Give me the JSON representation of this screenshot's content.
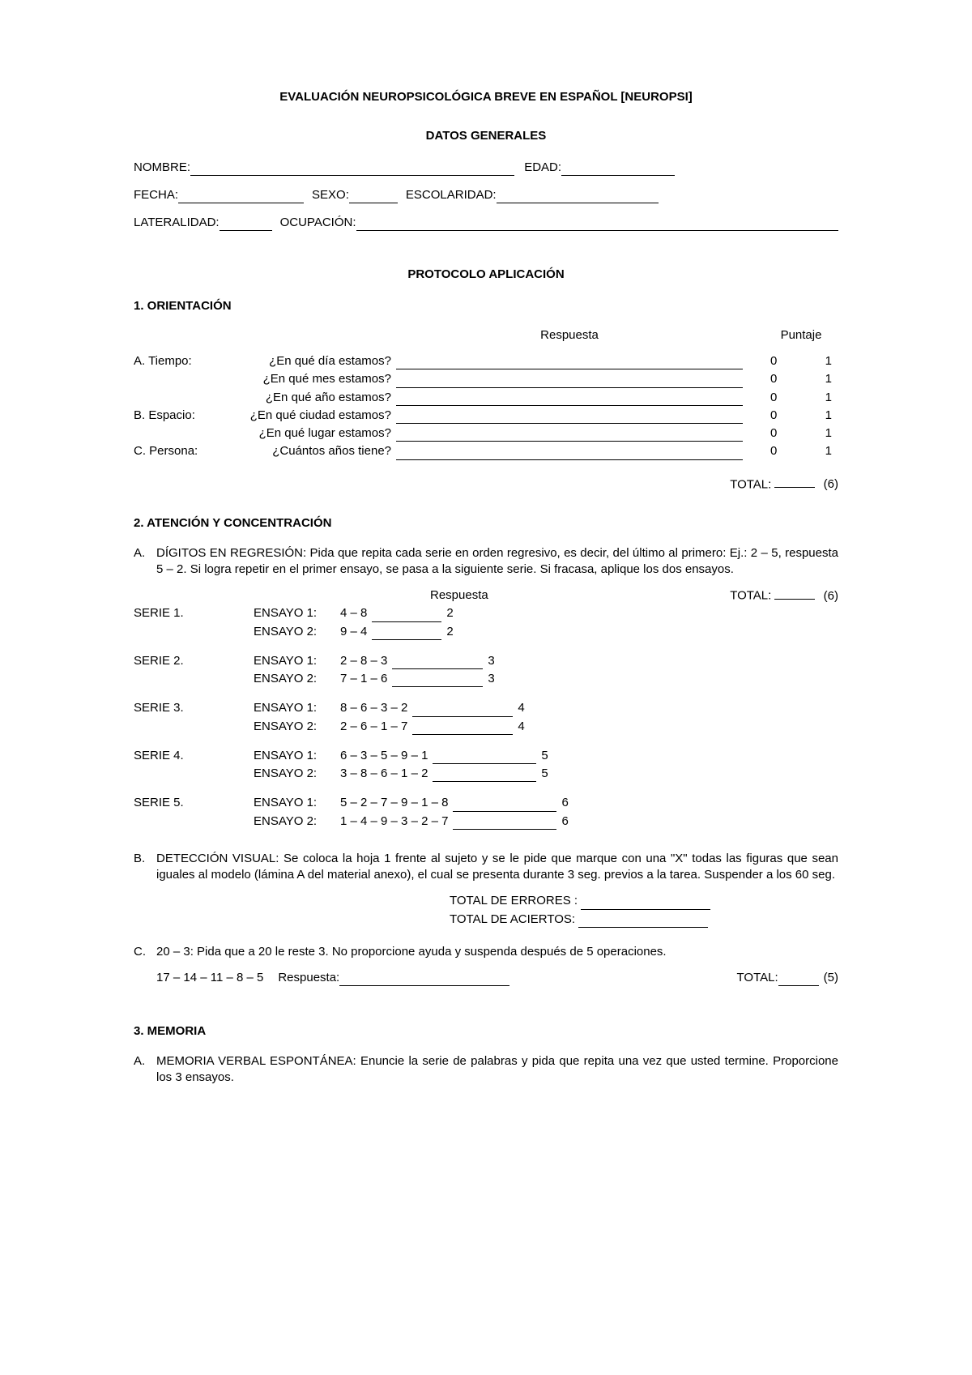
{
  "title": "EVALUACIÓN NEUROPSICOLÓGICA BREVE EN ESPAÑOL [NEUROPSI]",
  "subtitle": "DATOS GENERALES",
  "fields": {
    "nombre": "NOMBRE:",
    "edad": "EDAD:",
    "fecha": "FECHA:",
    "sexo": "SEXO:",
    "escolaridad": "ESCOLARIDAD:",
    "lateralidad": "LATERALIDAD:",
    "ocupacion": "OCUPACIÓN:"
  },
  "protocolo": "PROTOCOLO APLICACIÓN",
  "s1": {
    "heading": "1. ORIENTACIÓN",
    "col_respuesta": "Respuesta",
    "col_puntaje": "Puntaje",
    "rows": [
      {
        "cat": "A. Tiempo:",
        "q": "¿En qué día estamos?"
      },
      {
        "cat": "",
        "q": "¿En qué mes estamos?"
      },
      {
        "cat": "",
        "q": "¿En qué año estamos?"
      },
      {
        "cat": "B. Espacio:",
        "q": "¿En qué ciudad estamos?"
      },
      {
        "cat": "",
        "q": "¿En qué lugar estamos?"
      },
      {
        "cat": "C. Persona:",
        "q": "¿Cuántos años tiene?"
      }
    ],
    "score0": "0",
    "score1": "1",
    "total_label": "TOTAL:",
    "total_max": "(6)"
  },
  "s2": {
    "heading": "2. ATENCIÓN Y CONCENTRACIÓN",
    "a_letter": "A.",
    "a_text": "DÍGITOS EN REGRESIÓN: Pida que repita cada serie en orden regresivo, es decir, del último al primero: Ej.: 2 – 5, respuesta 5 – 2. Si logra repetir en el primer ensayo, se pasa a la siguiente serie. Si fracasa, aplique los dos ensayos.",
    "respuesta": "Respuesta",
    "ensayo1": "ENSAYO 1:",
    "ensayo2": "ENSAYO 2:",
    "series": [
      {
        "name": "SERIE 1.",
        "e1": "4 – 8",
        "e2": "9 – 4",
        "line_w": 86,
        "score": "2"
      },
      {
        "name": "SERIE 2.",
        "e1": "2 – 8 – 3",
        "e2": "7 – 1 – 6",
        "line_w": 112,
        "score": "3"
      },
      {
        "name": "SERIE 3.",
        "e1": "8 – 6 – 3 – 2",
        "e2": "2 – 6 – 1 – 7",
        "line_w": 124,
        "score": "4"
      },
      {
        "name": "SERIE 4.",
        "e1": "6 – 3 – 5 – 9 – 1",
        "e2": "3 – 8 – 6 – 1 – 2",
        "line_w": 128,
        "score": "5"
      },
      {
        "name": "SERIE 5.",
        "e1": "5 – 2 – 7 – 9 – 1 – 8",
        "e2": "1 – 4 – 9 – 3 – 2 – 7",
        "line_w": 128,
        "score": "6"
      }
    ],
    "total_label": "TOTAL:",
    "total_max": "(6)",
    "b_letter": "B.",
    "b_text": "DETECCIÓN VISUAL: Se coloca la hoja 1 frente al sujeto y se le pide que marque con una \"X\" todas las figuras que sean iguales al modelo (lámina A del material anexo), el cual se presenta durante 3 seg. previos a la tarea. Suspender a los 60 seg.",
    "errores": "TOTAL DE ERRORES :",
    "aciertos": "TOTAL DE ACIERTOS:",
    "c_letter": "C.",
    "c_text": "20 – 3: Pida que a 20 le reste 3. No proporcione ayuda y suspenda después de 5 operaciones.",
    "c_seq": "17 – 14 – 11 – 8 – 5",
    "c_resp": "Respuesta:",
    "c_total_max": "(5)"
  },
  "s3": {
    "heading": "3. MEMORIA",
    "a_letter": "A.",
    "a_text": "MEMORIA VERBAL ESPONTÁNEA: Enuncie la serie de palabras y pida que repita una vez que usted termine. Proporcione los 3 ensayos."
  }
}
